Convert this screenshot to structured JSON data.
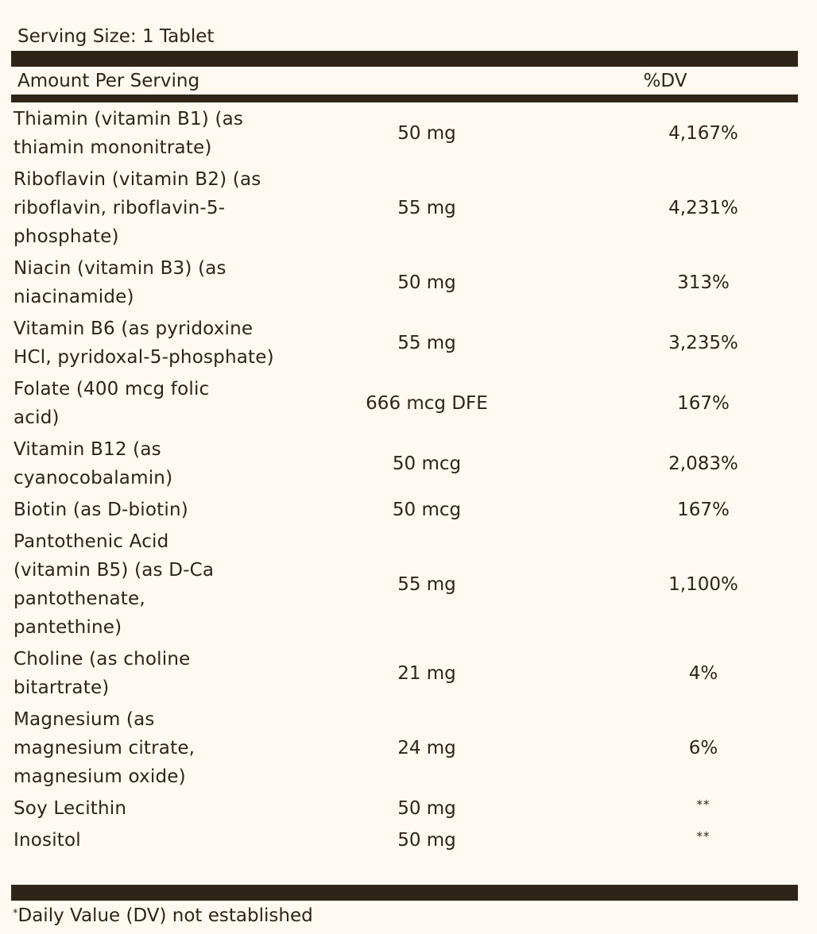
{
  "serving_size": "Serving Size: 1 Tablet",
  "header": {
    "amount_label": "Amount Per Serving",
    "dv_label": "%DV"
  },
  "rows": [
    {
      "name": "Thiamin (vitamin B1) (as thiamin mononitrate)",
      "amount": "50 mg",
      "dv": "4,167%"
    },
    {
      "name": "Riboflavin (vitamin B2) (as riboflavin, riboflavin-5-phosphate)",
      "amount": "55 mg",
      "dv": "4,231%"
    },
    {
      "name": "Niacin (vitamin B3) (as niacinamide)",
      "amount": "50 mg",
      "dv": "313%"
    },
    {
      "name": "Vitamin B6 (as pyridoxine HCl, pyridoxal-5-phosphate)",
      "amount": "55 mg",
      "dv": "3,235%"
    },
    {
      "name": "Folate (400 mcg folic acid)",
      "amount": "666 mcg DFE",
      "dv": "167%"
    },
    {
      "name": "Vitamin B12 (as cyanocobalamin)",
      "amount": "50 mcg",
      "dv": "2,083%"
    },
    {
      "name": "Biotin (as D-biotin)",
      "amount": "50 mcg",
      "dv": "167%"
    },
    {
      "name": "Pantothenic Acid (vitamin B5) (as D-Ca pantothenate, pantethine)",
      "amount": "55 mg",
      "dv": "1,100%"
    },
    {
      "name": "Choline (as choline bitartrate)",
      "amount": "21 mg",
      "dv": "4%"
    },
    {
      "name": "Magnesium (as magnesium citrate, magnesium oxide)",
      "amount": "24 mg",
      "dv": "6%"
    },
    {
      "name": "Soy Lecithin",
      "amount": "50 mg",
      "dv": "**"
    },
    {
      "name": "Inositol",
      "amount": "50 mg",
      "dv": "**"
    }
  ],
  "footnote": {
    "marker": "*",
    "text": "Daily Value (DV) not established"
  }
}
